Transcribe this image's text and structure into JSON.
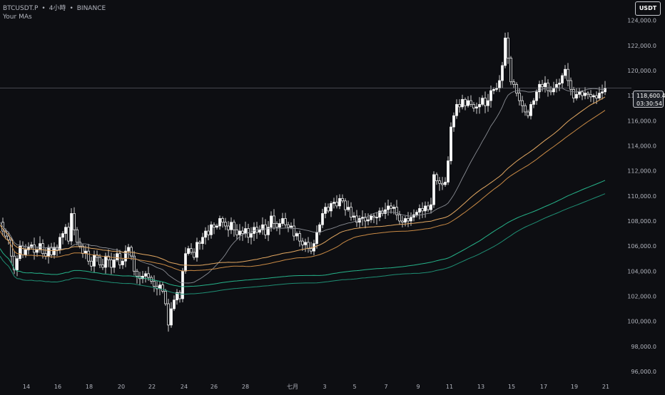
{
  "header": {
    "symbol": "BTCUSDT.P",
    "interval": "4小時",
    "exchange": "BINANCE",
    "separator": "•",
    "indicator": "Your MAs"
  },
  "currency_button": {
    "label": "USDT"
  },
  "last_price": {
    "price": "118,600.4",
    "countdown": "03:30:54"
  },
  "colors": {
    "background": "#0d0e12",
    "candle": "#ffffff",
    "ma_short": "#8a8d94",
    "ma_orange_1": "#e3a862",
    "ma_orange_2": "#c98a45",
    "ma_green_1": "#26b38a",
    "ma_green_2": "#1f8f74",
    "axis_text": "#b2b5be"
  },
  "chart_data": {
    "type": "candlestick",
    "y_ticks": [
      "124,000.0",
      "122,000.0",
      "120,000.0",
      "118,000.0",
      "116,000.0",
      "114,000.0",
      "112,000.0",
      "110,000.0",
      "108,000.0",
      "106,000.0",
      "104,000.0",
      "102,000.0",
      "100,000.0",
      "98,000.0",
      "96,000.0"
    ],
    "y_tick_values": [
      124000,
      122000,
      120000,
      118000,
      116000,
      114000,
      112000,
      110000,
      108000,
      106000,
      104000,
      102000,
      100000,
      98000,
      96000
    ],
    "x_ticks": [
      "14",
      "16",
      "18",
      "20",
      "22",
      "24",
      "26",
      "28",
      "七月",
      "3",
      "5",
      "7",
      "9",
      "11",
      "13",
      "15",
      "17",
      "19",
      "21"
    ],
    "ylim": [
      95600,
      125400
    ],
    "last_price_value": 118600.4,
    "candles_4h_close_path": [
      [
        0,
        107900
      ],
      [
        4,
        107200
      ],
      [
        8,
        106800
      ],
      [
        12,
        106500
      ],
      [
        16,
        105200
      ],
      [
        20,
        104100
      ],
      [
        24,
        105000
      ],
      [
        28,
        106000
      ],
      [
        32,
        105300
      ],
      [
        36,
        105700
      ],
      [
        40,
        105900
      ],
      [
        44,
        106100
      ],
      [
        48,
        105500
      ],
      [
        52,
        105700
      ],
      [
        56,
        106200
      ],
      [
        60,
        105400
      ],
      [
        64,
        105200
      ],
      [
        68,
        105900
      ],
      [
        72,
        105300
      ],
      [
        76,
        105900
      ],
      [
        80,
        105700
      ],
      [
        84,
        106700
      ],
      [
        88,
        107000
      ],
      [
        92,
        107500
      ],
      [
        96,
        106400
      ],
      [
        100,
        108600
      ],
      [
        104,
        107300
      ],
      [
        108,
        106300
      ],
      [
        112,
        106000
      ],
      [
        116,
        105400
      ],
      [
        120,
        105600
      ],
      [
        124,
        104800
      ],
      [
        128,
        104400
      ],
      [
        132,
        105300
      ],
      [
        136,
        105100
      ],
      [
        140,
        104500
      ],
      [
        144,
        104300
      ],
      [
        148,
        105200
      ],
      [
        152,
        104900
      ],
      [
        156,
        104300
      ],
      [
        160,
        104900
      ],
      [
        164,
        105400
      ],
      [
        168,
        104500
      ],
      [
        172,
        104800
      ],
      [
        176,
        105600
      ],
      [
        180,
        105900
      ],
      [
        184,
        105200
      ],
      [
        188,
        104000
      ],
      [
        192,
        103600
      ],
      [
        196,
        103400
      ],
      [
        200,
        103600
      ],
      [
        204,
        103800
      ],
      [
        208,
        103500
      ],
      [
        212,
        103200
      ],
      [
        216,
        102800
      ],
      [
        220,
        102600
      ],
      [
        224,
        102900
      ],
      [
        228,
        102400
      ],
      [
        232,
        101400
      ],
      [
        236,
        99700
      ],
      [
        240,
        101000
      ],
      [
        244,
        101700
      ],
      [
        248,
        102300
      ],
      [
        252,
        101800
      ],
      [
        256,
        104000
      ],
      [
        260,
        105400
      ],
      [
        264,
        105800
      ],
      [
        268,
        105500
      ],
      [
        272,
        105100
      ],
      [
        276,
        106300
      ],
      [
        280,
        106200
      ],
      [
        284,
        106700
      ],
      [
        288,
        107200
      ],
      [
        292,
        106900
      ],
      [
        296,
        107700
      ],
      [
        300,
        107500
      ],
      [
        304,
        107600
      ],
      [
        308,
        108200
      ],
      [
        312,
        107900
      ],
      [
        316,
        107600
      ],
      [
        320,
        107300
      ],
      [
        324,
        107900
      ],
      [
        328,
        107300
      ],
      [
        332,
        106900
      ],
      [
        336,
        107200
      ],
      [
        340,
        107000
      ],
      [
        344,
        107400
      ],
      [
        348,
        106700
      ],
      [
        352,
        107000
      ],
      [
        356,
        107500
      ],
      [
        360,
        107100
      ],
      [
        364,
        107300
      ],
      [
        368,
        107700
      ],
      [
        372,
        106900
      ],
      [
        376,
        107500
      ],
      [
        380,
        108400
      ],
      [
        384,
        107800
      ],
      [
        388,
        107500
      ],
      [
        392,
        107800
      ],
      [
        396,
        108200
      ],
      [
        400,
        107700
      ],
      [
        404,
        107500
      ],
      [
        408,
        107600
      ],
      [
        412,
        106800
      ],
      [
        416,
        107000
      ],
      [
        420,
        106400
      ],
      [
        424,
        106100
      ],
      [
        428,
        106300
      ],
      [
        432,
        105800
      ],
      [
        436,
        105600
      ],
      [
        440,
        106200
      ],
      [
        444,
        107100
      ],
      [
        448,
        107700
      ],
      [
        452,
        108600
      ],
      [
        456,
        109100
      ],
      [
        460,
        108800
      ],
      [
        464,
        109400
      ],
      [
        468,
        109500
      ],
      [
        472,
        109200
      ],
      [
        476,
        109800
      ],
      [
        480,
        109600
      ],
      [
        484,
        108900
      ],
      [
        488,
        109100
      ],
      [
        492,
        108300
      ],
      [
        496,
        108400
      ],
      [
        500,
        107900
      ],
      [
        504,
        108200
      ],
      [
        508,
        108300
      ],
      [
        512,
        108000
      ],
      [
        516,
        108100
      ],
      [
        520,
        108400
      ],
      [
        524,
        108300
      ],
      [
        528,
        108300
      ],
      [
        532,
        108800
      ],
      [
        536,
        108600
      ],
      [
        540,
        108900
      ],
      [
        544,
        109200
      ],
      [
        548,
        109000
      ],
      [
        552,
        109100
      ],
      [
        556,
        108500
      ],
      [
        560,
        108000
      ],
      [
        564,
        107900
      ],
      [
        568,
        108200
      ],
      [
        572,
        108000
      ],
      [
        576,
        108300
      ],
      [
        580,
        108500
      ],
      [
        584,
        108700
      ],
      [
        588,
        109000
      ],
      [
        592,
        108800
      ],
      [
        596,
        109200
      ],
      [
        600,
        108900
      ],
      [
        604,
        109300
      ],
      [
        608,
        111700
      ],
      [
        612,
        111200
      ],
      [
        616,
        111000
      ],
      [
        620,
        110900
      ],
      [
        624,
        111100
      ],
      [
        628,
        112800
      ],
      [
        632,
        115500
      ],
      [
        636,
        116400
      ],
      [
        640,
        117300
      ],
      [
        644,
        117100
      ],
      [
        648,
        117700
      ],
      [
        652,
        117200
      ],
      [
        656,
        117600
      ],
      [
        660,
        117300
      ],
      [
        664,
        117000
      ],
      [
        668,
        117100
      ],
      [
        672,
        117300
      ],
      [
        676,
        117800
      ],
      [
        680,
        117200
      ],
      [
        684,
        117600
      ],
      [
        688,
        118400
      ],
      [
        692,
        118500
      ],
      [
        696,
        118600
      ],
      [
        700,
        119200
      ],
      [
        704,
        120400
      ],
      [
        708,
        122600
      ],
      [
        712,
        121000
      ],
      [
        716,
        119100
      ],
      [
        720,
        118900
      ],
      [
        724,
        118200
      ],
      [
        728,
        117600
      ],
      [
        732,
        117200
      ],
      [
        736,
        116700
      ],
      [
        740,
        116400
      ],
      [
        744,
        117300
      ],
      [
        748,
        117600
      ],
      [
        752,
        118300
      ],
      [
        756,
        118900
      ],
      [
        760,
        118700
      ],
      [
        764,
        119000
      ],
      [
        768,
        118400
      ],
      [
        772,
        118300
      ],
      [
        776,
        118600
      ],
      [
        780,
        118900
      ],
      [
        784,
        119000
      ],
      [
        788,
        119600
      ],
      [
        792,
        120100
      ],
      [
        796,
        119200
      ],
      [
        800,
        118500
      ],
      [
        804,
        117800
      ],
      [
        808,
        118100
      ],
      [
        812,
        118300
      ],
      [
        816,
        118000
      ],
      [
        820,
        118200
      ],
      [
        824,
        118100
      ],
      [
        828,
        117900
      ],
      [
        832,
        118000
      ],
      [
        836,
        117800
      ],
      [
        840,
        118200
      ],
      [
        844,
        118300
      ],
      [
        848,
        118600
      ]
    ]
  }
}
